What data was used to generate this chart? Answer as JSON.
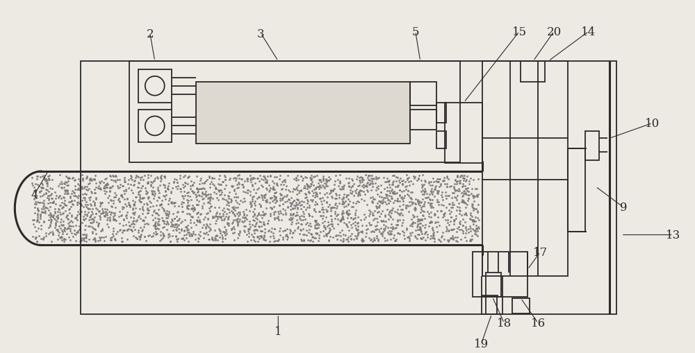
{
  "bg_color": "#ede9e3",
  "line_color": "#2a2a2a",
  "lw": 1.3,
  "tlw": 2.2,
  "fig_width": 10.0,
  "fig_height": 5.1,
  "label_fontsize": 12
}
